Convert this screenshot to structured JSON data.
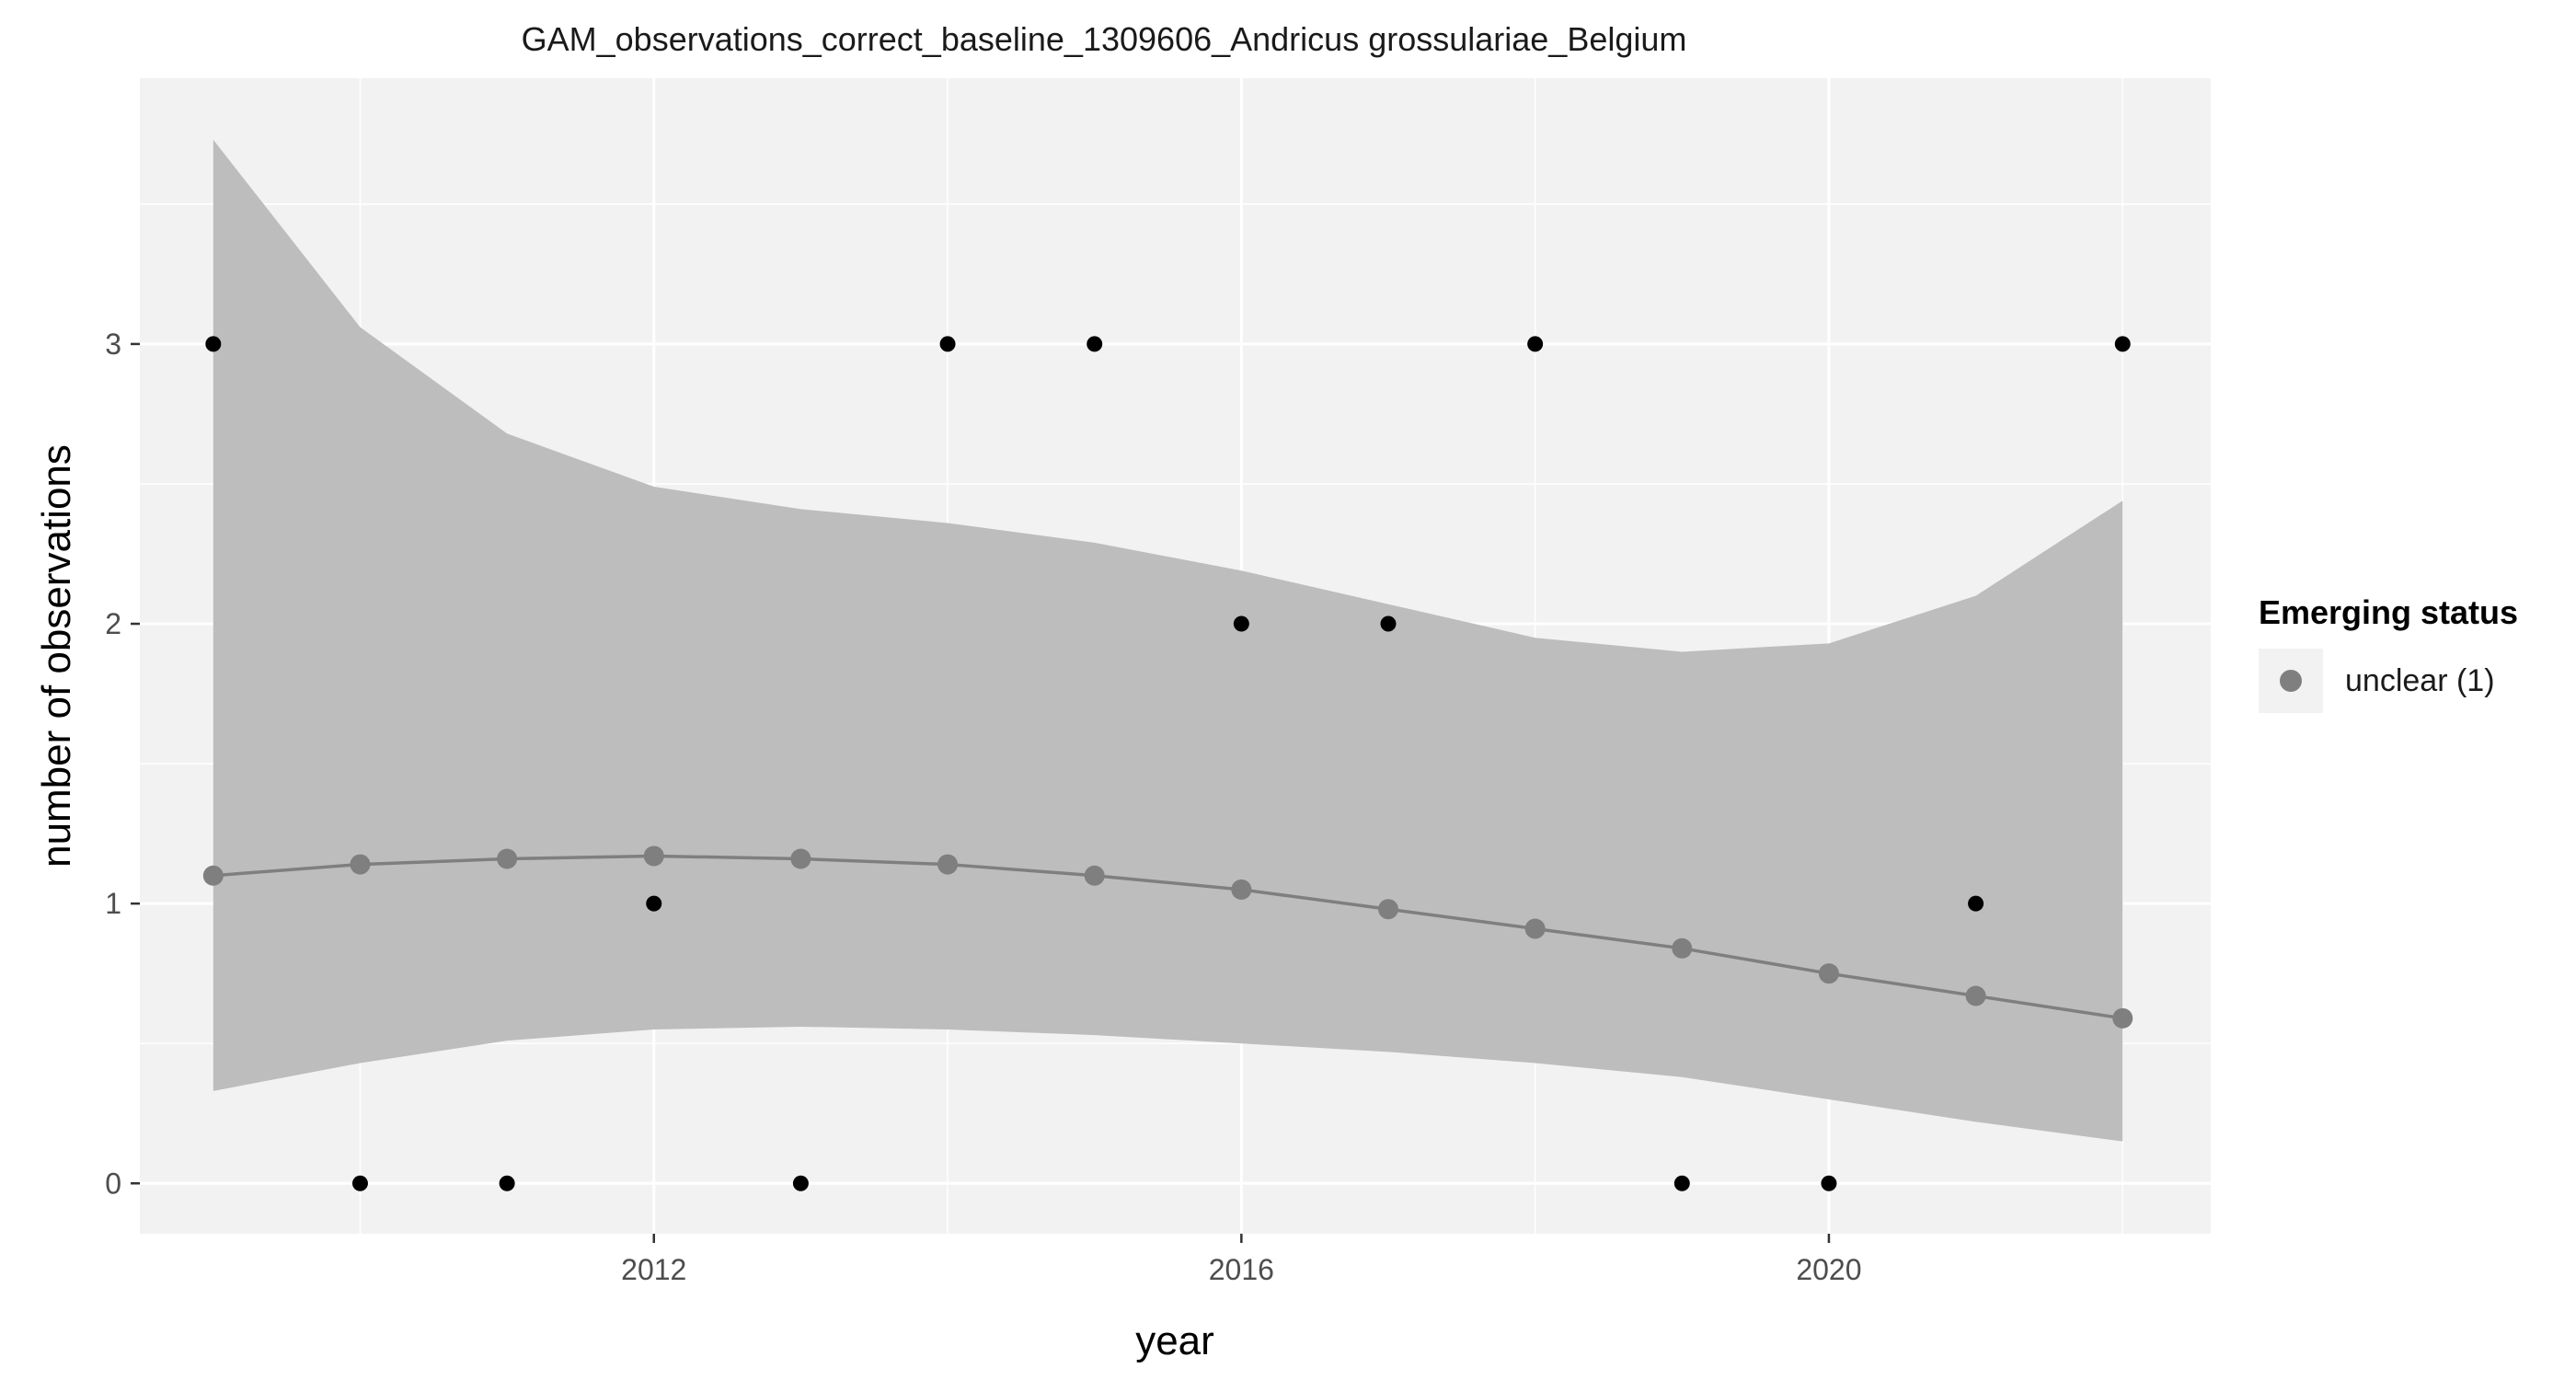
{
  "chart_data": {
    "type": "line",
    "title": "GAM_observations_correct_baseline_1309606_Andricus grossulariae_Belgium",
    "xlabel": "year",
    "ylabel": "number of observations",
    "x_ticks": [
      2012,
      2016,
      2020
    ],
    "y_ticks": [
      0,
      1,
      2,
      3
    ],
    "xlim": [
      2008.5,
      2022.6
    ],
    "ylim": [
      -0.18,
      3.95
    ],
    "grid": true,
    "legend": {
      "title": "Emerging status",
      "position": "right",
      "entries": [
        {
          "label": "unclear (1)",
          "color": "#7f7f7f"
        }
      ]
    },
    "observations": {
      "x": [
        2009,
        2010,
        2011,
        2012,
        2013,
        2014,
        2015,
        2016,
        2017,
        2018,
        2019,
        2020,
        2021,
        2022
      ],
      "y": [
        3,
        0,
        0,
        1,
        0,
        3,
        3,
        2,
        2,
        3,
        0,
        0,
        1,
        3
      ],
      "color": "#000000"
    },
    "series": [
      {
        "name": "unclear (1)",
        "x": [
          2009,
          2010,
          2011,
          2012,
          2013,
          2014,
          2015,
          2016,
          2017,
          2018,
          2019,
          2020,
          2021,
          2022
        ],
        "values": [
          1.1,
          1.14,
          1.16,
          1.17,
          1.16,
          1.14,
          1.1,
          1.05,
          0.98,
          0.91,
          0.84,
          0.75,
          0.67,
          0.59
        ],
        "lower": [
          0.33,
          0.43,
          0.51,
          0.55,
          0.56,
          0.55,
          0.53,
          0.5,
          0.47,
          0.43,
          0.38,
          0.3,
          0.22,
          0.15
        ],
        "upper": [
          3.73,
          3.06,
          2.68,
          2.49,
          2.41,
          2.36,
          2.29,
          2.19,
          2.07,
          1.95,
          1.9,
          1.93,
          2.1,
          2.44
        ],
        "color": "#7f7f7f",
        "ribbon_color": "#bdbdbd"
      }
    ]
  }
}
